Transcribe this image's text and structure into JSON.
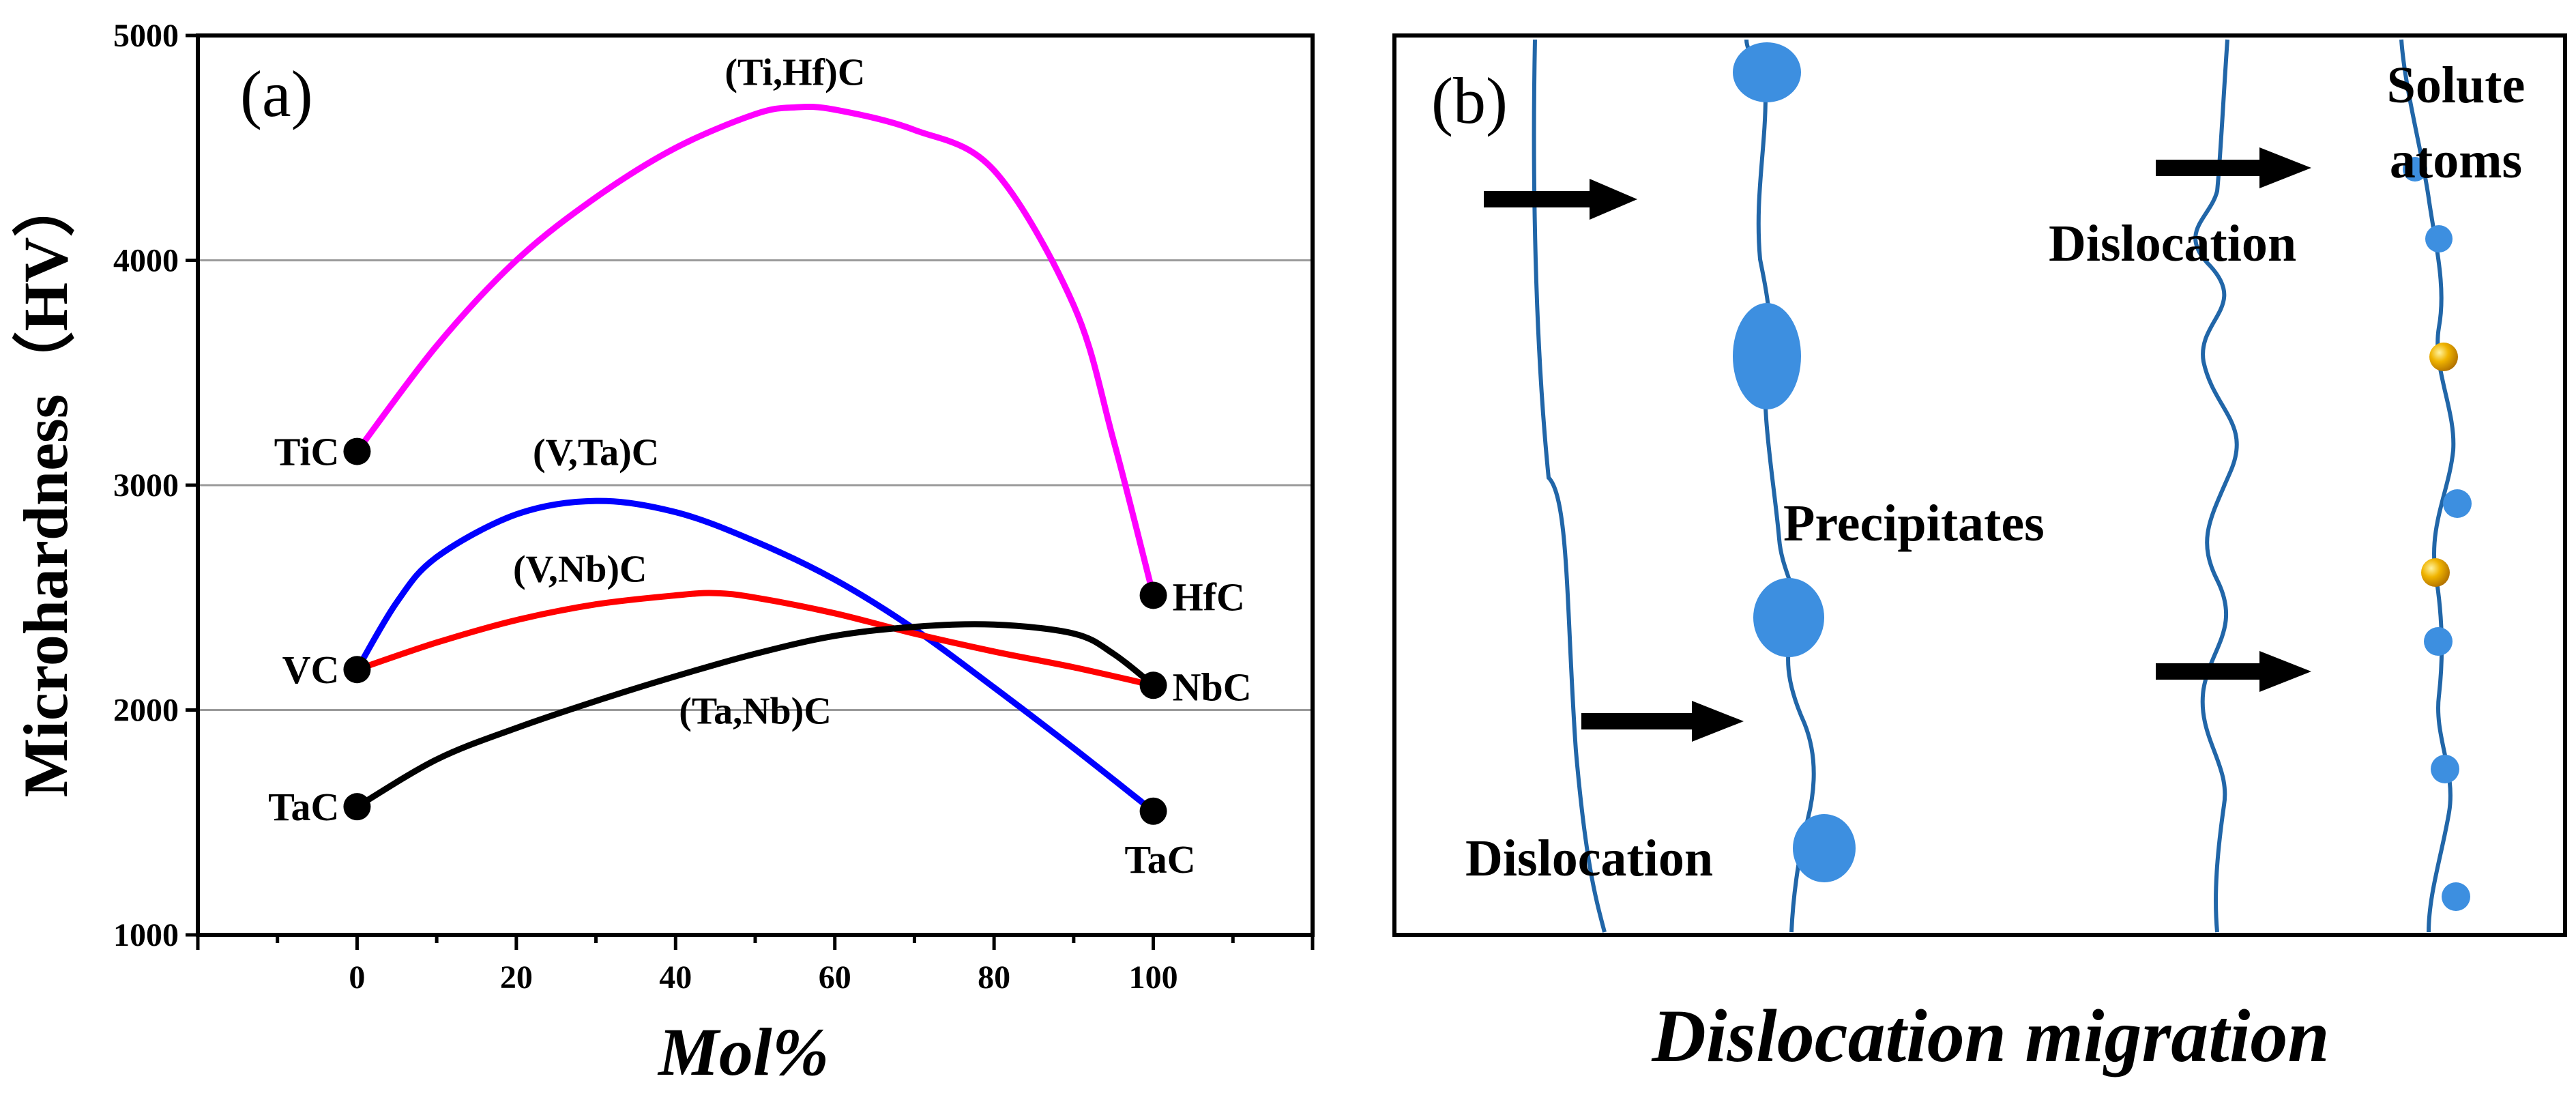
{
  "chart_data": {
    "type": "line",
    "panel_label": "(a)",
    "xlabel": "Mol%",
    "ylabel": "Microhardness（HV）",
    "xlim": [
      -20,
      120
    ],
    "ylim": [
      1000,
      5000
    ],
    "x_ticks": [
      0,
      20,
      40,
      60,
      80,
      100
    ],
    "y_ticks": [
      1000,
      2000,
      3000,
      4000,
      5000
    ],
    "gridlines_y": [
      2000,
      3000,
      4000
    ],
    "series": [
      {
        "name": "(Ti,Hf)C",
        "color": "#ff00ff",
        "x": [
          0,
          10,
          20,
          30,
          40,
          50,
          55,
          60,
          70,
          80,
          90,
          95,
          100
        ],
        "y": [
          3150,
          3620,
          4000,
          4280,
          4500,
          4650,
          4680,
          4670,
          4580,
          4400,
          3800,
          3200,
          2510
        ]
      },
      {
        "name": "(V,Ta)C",
        "color": "#0000ff",
        "x": [
          0,
          5,
          10,
          20,
          30,
          40,
          50,
          60,
          70,
          80,
          90,
          100
        ],
        "y": [
          2180,
          2480,
          2680,
          2870,
          2930,
          2880,
          2750,
          2580,
          2360,
          2100,
          1830,
          1550
        ]
      },
      {
        "name": "(V,Nb)C",
        "color": "#ff0000",
        "x": [
          0,
          10,
          20,
          30,
          40,
          45,
          50,
          60,
          70,
          80,
          90,
          100
        ],
        "y": [
          2180,
          2300,
          2400,
          2470,
          2510,
          2520,
          2500,
          2430,
          2340,
          2260,
          2190,
          2110
        ]
      },
      {
        "name": "(Ta,Nb)C",
        "color": "#000000",
        "x": [
          0,
          10,
          20,
          30,
          40,
          50,
          60,
          70,
          80,
          90,
          95,
          100
        ],
        "y": [
          1570,
          1780,
          1920,
          2040,
          2150,
          2250,
          2330,
          2370,
          2380,
          2340,
          2250,
          2110
        ]
      }
    ],
    "endpoints": [
      {
        "label": "TiC",
        "x": 0,
        "y": 3150
      },
      {
        "label": "VC",
        "x": 0,
        "y": 2180
      },
      {
        "label": "TaC",
        "x": 0,
        "y": 1570
      },
      {
        "label": "HfC",
        "x": 100,
        "y": 2510
      },
      {
        "label": "NbC",
        "x": 100,
        "y": 2110
      },
      {
        "label": "TaC",
        "x": 100,
        "y": 1550
      }
    ]
  },
  "diagram": {
    "panel_label": "(b)",
    "title": "Dislocation migration",
    "labels": {
      "dislocation_left": "Dislocation",
      "precipitates": "Precipitates",
      "dislocation_right": "Dislocation",
      "solute_line1": "Solute",
      "solute_line2": "atoms"
    },
    "colors": {
      "line": "#2166a8",
      "precipitate": "#3d8fe0",
      "solute": "#3d8fe0",
      "foreign_atom": "#e8a800",
      "arrow": "#000000"
    }
  }
}
